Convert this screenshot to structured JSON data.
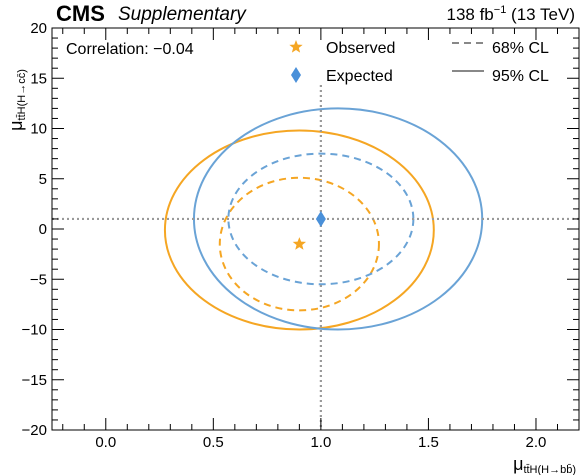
{
  "header": {
    "experiment": "CMS",
    "tag": "Supplementary",
    "luminosity": "138 fb",
    "lumi_exponent": "−1",
    "energy": "(13 TeV)"
  },
  "chart_data": {
    "type": "scatter",
    "title": "",
    "xlabel": "μ",
    "xlabel_sub": "tt̄H(H→bb̄)",
    "ylabel": "μ",
    "ylabel_sub": "tt̄H(H→cc̄)",
    "xlim": [
      -0.25,
      2.2
    ],
    "ylim": [
      -20,
      20
    ],
    "x_ticks": [
      0.0,
      0.5,
      1.0,
      1.5,
      2.0
    ],
    "x_tick_labels": [
      "0.0",
      "0.5",
      "1.0",
      "1.5",
      "2.0"
    ],
    "y_ticks": [
      -20,
      -15,
      -10,
      -5,
      0,
      5,
      10,
      15,
      20
    ],
    "y_tick_labels": [
      "−20",
      "−15",
      "−10",
      "−5",
      "0",
      "5",
      "10",
      "15",
      "20"
    ],
    "annotation": "Correlation: −0.04",
    "grid": false,
    "legend_position": "top",
    "reference_lines": {
      "x": 1.0,
      "y": 1.0
    },
    "points": [
      {
        "name": "Observed",
        "marker": "star",
        "x": 0.9,
        "y": -1.5,
        "color": "#f5a623"
      },
      {
        "name": "Expected",
        "marker": "diamond",
        "x": 1.0,
        "y": 1.0,
        "color": "#4a90d9"
      }
    ],
    "contours": [
      {
        "series": "Observed",
        "level": "68% CL",
        "style": "dashed",
        "color": "#f5a623",
        "cx": 0.9,
        "cy": -1.5,
        "rx": 0.37,
        "ry": 6.6
      },
      {
        "series": "Observed",
        "level": "95% CL",
        "style": "solid",
        "color": "#f5a623",
        "cx": 0.9,
        "cy": -0.1,
        "rx": 0.625,
        "ry": 9.9
      },
      {
        "series": "Expected",
        "level": "68% CL",
        "style": "dashed",
        "color": "#6aa3d6",
        "cx": 1.0,
        "cy": 1.0,
        "rx": 0.43,
        "ry": 6.5
      },
      {
        "series": "Expected",
        "level": "95% CL",
        "style": "solid",
        "color": "#6aa3d6",
        "cx": 1.08,
        "cy": 1.0,
        "rx": 0.67,
        "ry": 11.0
      }
    ],
    "legend": [
      {
        "label": "Observed",
        "kind": "star",
        "color": "#f5a623"
      },
      {
        "label": "Expected",
        "kind": "diamond",
        "color": "#4a90d9"
      },
      {
        "label": "68% CL",
        "kind": "dashed",
        "color": "#888888"
      },
      {
        "label": "95% CL",
        "kind": "solid",
        "color": "#888888"
      }
    ]
  }
}
